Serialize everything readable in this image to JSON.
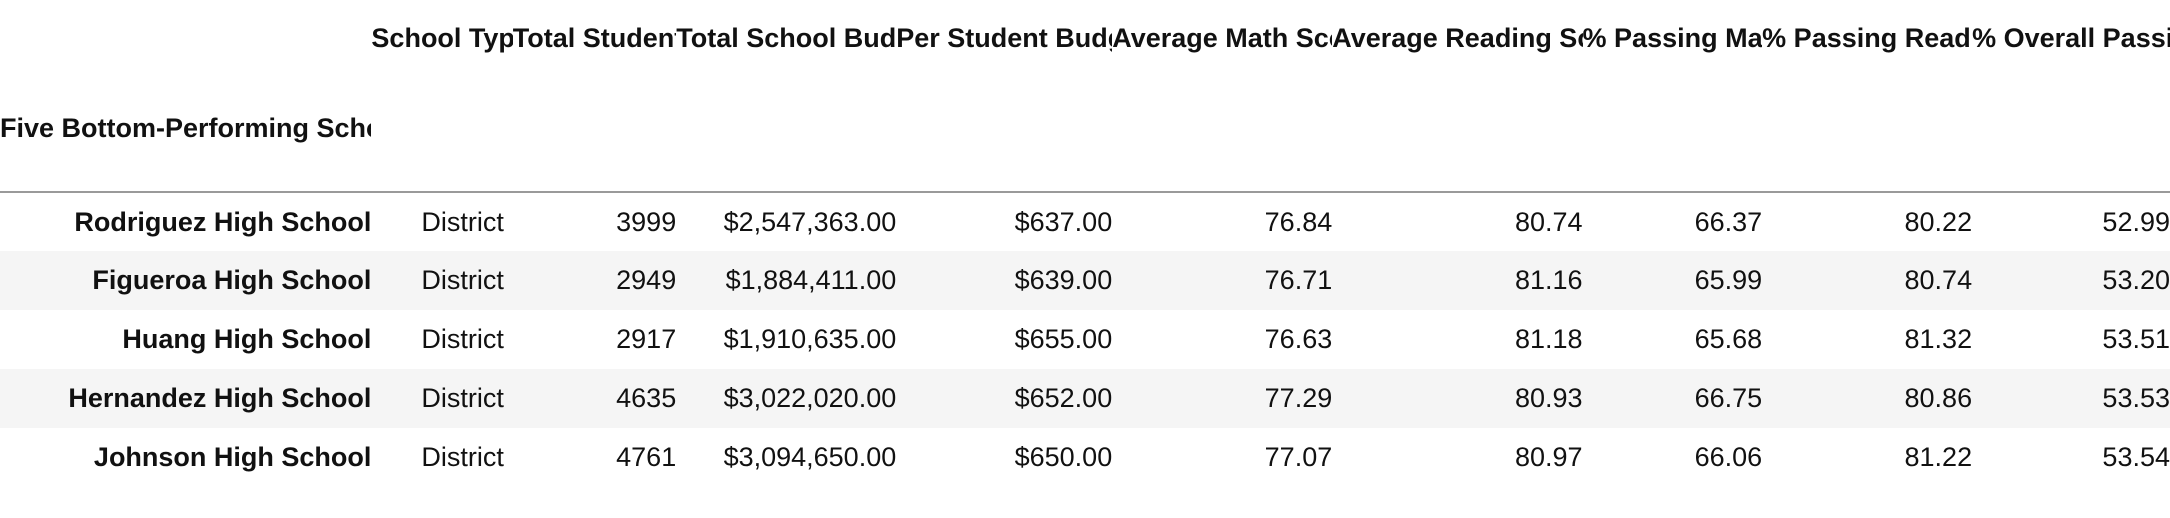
{
  "table": {
    "index_name": "Five Bottom-Performing Schools in District",
    "columns": [
      "School Type",
      "Total Students",
      "Total School Budget",
      "Per Student Budget",
      "Average Math Score",
      "Average Reading Score",
      "% Passing Math",
      "% Passing Reading",
      "% Overall Passing"
    ],
    "rows": [
      {
        "name": "Rodriguez High School",
        "cells": [
          "District",
          "3999",
          "$2,547,363.00",
          "$637.00",
          "76.84",
          "80.74",
          "66.37",
          "80.22",
          "52.99"
        ]
      },
      {
        "name": "Figueroa High School",
        "cells": [
          "District",
          "2949",
          "$1,884,411.00",
          "$639.00",
          "76.71",
          "81.16",
          "65.99",
          "80.74",
          "53.20"
        ]
      },
      {
        "name": "Huang High School",
        "cells": [
          "District",
          "2917",
          "$1,910,635.00",
          "$655.00",
          "76.63",
          "81.18",
          "65.68",
          "81.32",
          "53.51"
        ]
      },
      {
        "name": "Hernandez High School",
        "cells": [
          "District",
          "4635",
          "$3,022,020.00",
          "$652.00",
          "77.29",
          "80.93",
          "66.75",
          "80.86",
          "53.53"
        ]
      },
      {
        "name": "Johnson High School",
        "cells": [
          "District",
          "4761",
          "$3,094,650.00",
          "$650.00",
          "77.07",
          "80.97",
          "66.06",
          "81.22",
          "53.54"
        ]
      }
    ]
  }
}
